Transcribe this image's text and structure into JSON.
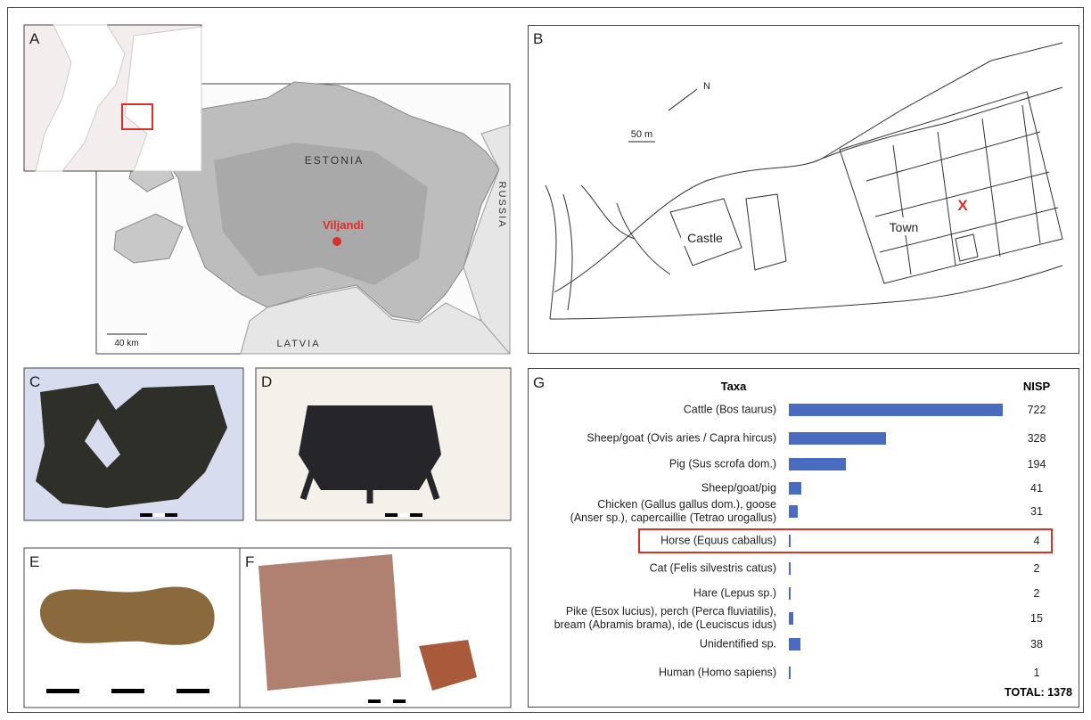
{
  "panels": {
    "a": {
      "letter": "A",
      "country": "ESTONIA",
      "east": "RUSSIA",
      "south": "LATVIA",
      "site": "Viljandi",
      "scale": "40 km"
    },
    "b": {
      "letter": "B",
      "north": "N",
      "scale": "50 m",
      "castle": "Castle",
      "town": "Town",
      "marker": "X"
    },
    "c": {
      "letter": "C"
    },
    "d": {
      "letter": "D"
    },
    "e": {
      "letter": "E"
    },
    "f": {
      "letter": "F"
    }
  },
  "chart_data": {
    "type": "bar",
    "letter": "G",
    "category_header": "Taxa",
    "value_header": "NISP",
    "categories": [
      "Cattle (Bos taurus)",
      "Sheep/goat (Ovis aries / Capra hircus)",
      "Pig (Sus scrofa dom.)",
      "Sheep/goat/pig",
      "Chicken (Gallus gallus dom.), goose\n(Anser sp.), capercaillie (Tetrao urogallus)",
      "Horse (Equus caballus)",
      "Cat (Felis silvestris catus)",
      "Hare (Lepus sp.)",
      "Pike (Esox lucius), perch (Perca fluviatilis),\nbream (Abramis brama), ide (Leuciscus idus)",
      "Unidentified sp.",
      "Human (Homo sapiens)"
    ],
    "values": [
      722,
      328,
      194,
      41,
      31,
      4,
      2,
      2,
      15,
      38,
      1
    ],
    "color": "#4a6cc0",
    "highlight": 5,
    "highlight_color": "#d9302c",
    "total": "TOTAL: 1378"
  }
}
